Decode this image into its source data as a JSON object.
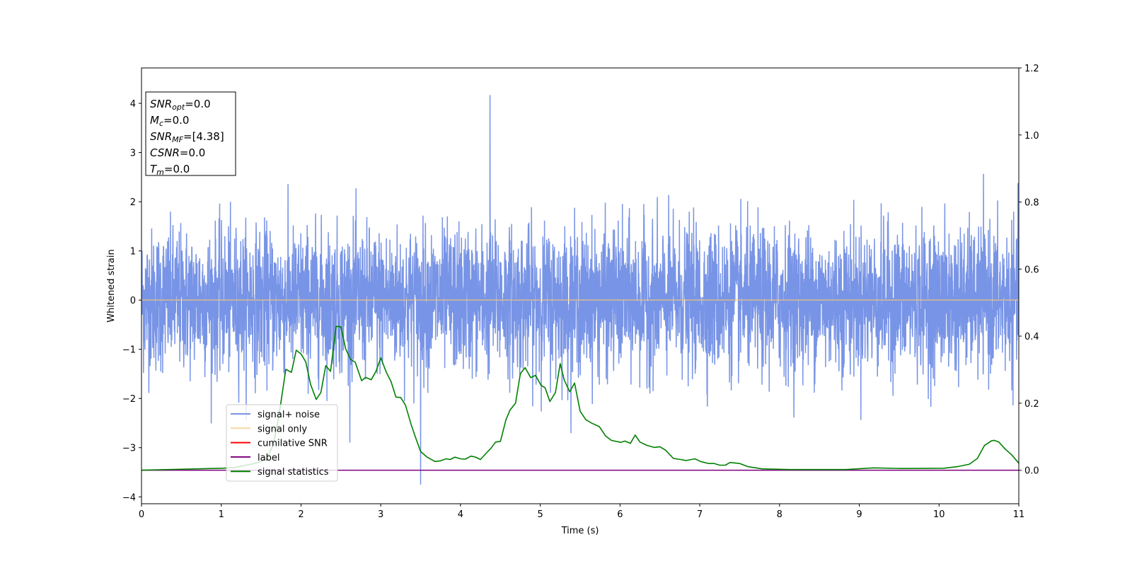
{
  "chart_data": {
    "type": "line",
    "xlabel": "Time (s)",
    "ylabel": "Whitened strain",
    "xlim": [
      0,
      11
    ],
    "ylim": [
      -4.14,
      4.72
    ],
    "y2lim": [
      -0.1,
      1.2
    ],
    "xticks": [
      "0",
      "1",
      "2",
      "3",
      "4",
      "5",
      "6",
      "7",
      "8",
      "9",
      "10",
      "11"
    ],
    "yticks": [
      "−4",
      "−3",
      "−2",
      "−1",
      "0",
      "1",
      "2",
      "3",
      "4"
    ],
    "y2ticks": [
      "0.0",
      "0.2",
      "0.4",
      "0.6",
      "0.8",
      "1.0",
      "1.2"
    ],
    "legend_position": "lower-left",
    "legend": [
      "signal+ noise",
      "signal only",
      "cumilative SNR",
      "label",
      "signal statistics"
    ],
    "colors": {
      "signal_noise": "#7894e6",
      "signal_only": "#f5c57a",
      "cumulative_snr": "#ff0000",
      "label": "#800080",
      "signal_statistics": "#008000"
    },
    "series": [
      {
        "name": "signal+ noise",
        "axis": "left",
        "note": "random noise, std≈0.75, range approx [-3.75, 4.17]",
        "peak": {
          "t": 4.37,
          "y": 4.17
        },
        "trough": {
          "t": 3.5,
          "y": -3.75
        }
      },
      {
        "name": "signal only",
        "axis": "left",
        "x": [
          0,
          11
        ],
        "y": [
          0,
          0
        ]
      },
      {
        "name": "label",
        "axis": "right",
        "x": [
          0,
          11
        ],
        "y": [
          0,
          0
        ]
      },
      {
        "name": "signal statistics",
        "axis": "right",
        "x": [
          0,
          1.02,
          1.16,
          1.42,
          1.56,
          1.65,
          1.72,
          1.81,
          1.88,
          1.94,
          2.0,
          2.06,
          2.12,
          2.19,
          2.25,
          2.31,
          2.37,
          2.44,
          2.5,
          2.56,
          2.62,
          2.68,
          2.76,
          2.81,
          2.88,
          2.94,
          3.0,
          3.07,
          3.13,
          3.19,
          3.25,
          3.31,
          3.38,
          3.44,
          3.5,
          3.58,
          3.68,
          3.75,
          3.82,
          3.87,
          3.93,
          4.0,
          4.06,
          4.13,
          4.19,
          4.25,
          4.33,
          4.38,
          4.44,
          4.5,
          4.57,
          4.62,
          4.69,
          4.75,
          4.81,
          4.88,
          4.94,
          5.01,
          5.06,
          5.12,
          5.19,
          5.25,
          5.3,
          5.37,
          5.43,
          5.5,
          5.57,
          5.64,
          5.74,
          5.82,
          5.89,
          6.01,
          6.06,
          6.13,
          6.19,
          6.25,
          6.34,
          6.43,
          6.5,
          6.57,
          6.67,
          6.76,
          6.83,
          6.94,
          7.01,
          7.11,
          7.18,
          7.25,
          7.32,
          7.38,
          7.5,
          7.6,
          7.78,
          8.13,
          8.83,
          9.18,
          9.53,
          10.06,
          10.24,
          10.38,
          10.48,
          10.57,
          10.66,
          10.69,
          10.75,
          10.83,
          10.91,
          11.0
        ],
        "y": [
          0.0,
          0.006,
          0.008,
          0.02,
          0.032,
          0.074,
          0.158,
          0.301,
          0.292,
          0.358,
          0.347,
          0.323,
          0.256,
          0.211,
          0.232,
          0.312,
          0.295,
          0.429,
          0.428,
          0.362,
          0.331,
          0.322,
          0.267,
          0.277,
          0.27,
          0.295,
          0.335,
          0.292,
          0.264,
          0.218,
          0.217,
          0.194,
          0.137,
          0.095,
          0.056,
          0.039,
          0.026,
          0.028,
          0.034,
          0.032,
          0.039,
          0.034,
          0.033,
          0.042,
          0.039,
          0.032,
          0.053,
          0.065,
          0.084,
          0.086,
          0.151,
          0.179,
          0.2,
          0.288,
          0.306,
          0.276,
          0.283,
          0.253,
          0.246,
          0.205,
          0.232,
          0.318,
          0.269,
          0.234,
          0.26,
          0.176,
          0.151,
          0.141,
          0.13,
          0.102,
          0.089,
          0.083,
          0.087,
          0.08,
          0.105,
          0.084,
          0.074,
          0.068,
          0.07,
          0.06,
          0.035,
          0.032,
          0.029,
          0.034,
          0.026,
          0.02,
          0.02,
          0.015,
          0.015,
          0.023,
          0.02,
          0.011,
          0.004,
          0.002,
          0.002,
          0.007,
          0.005,
          0.006,
          0.011,
          0.018,
          0.035,
          0.074,
          0.088,
          0.089,
          0.084,
          0.063,
          0.046,
          0.021
        ]
      }
    ],
    "annotation_box": [
      {
        "var": "SNR",
        "sub": "opt",
        "value": "=0.0"
      },
      {
        "var": "M",
        "sub": "c",
        "value": "=0.0"
      },
      {
        "var": "SNR",
        "sub": "MF",
        "value": "=[4.38]"
      },
      {
        "var": "CSNR",
        "sub": "",
        "value": "=0.0"
      },
      {
        "var": "T",
        "sub": "m",
        "value": "=0.0"
      }
    ]
  }
}
